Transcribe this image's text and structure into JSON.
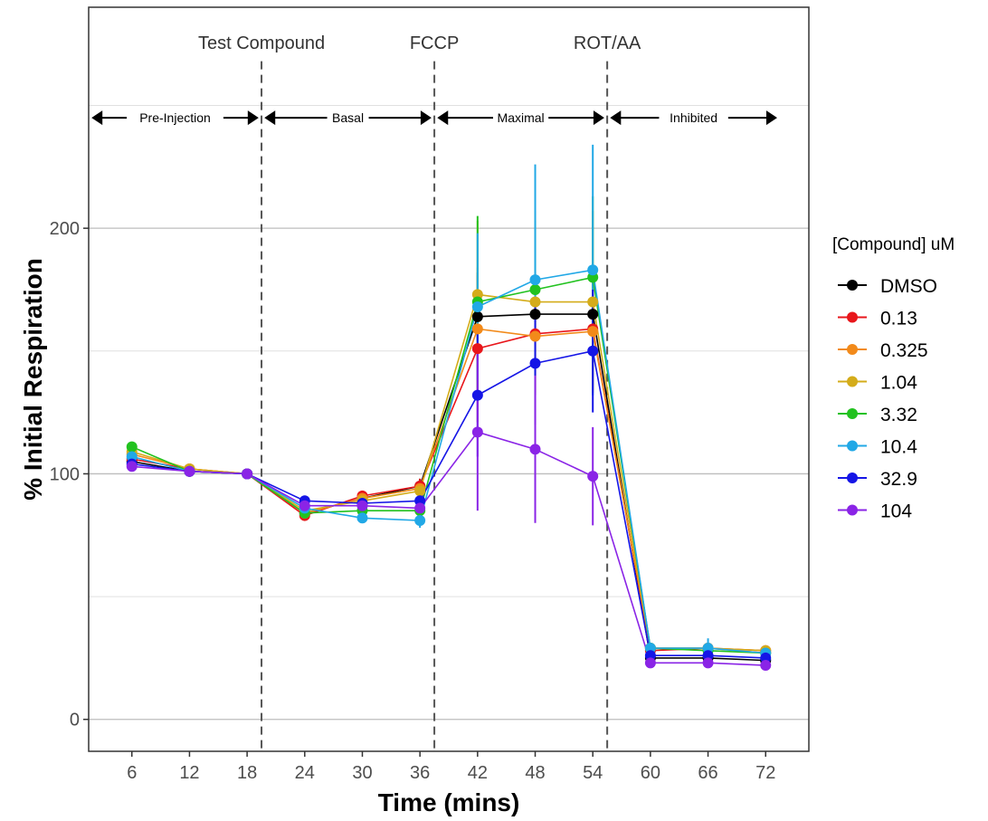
{
  "chart_data": {
    "type": "line",
    "xlabel": "Time (mins)",
    "ylabel": "% Initial Respiration",
    "x": [
      6,
      12,
      18,
      24,
      30,
      36,
      42,
      48,
      54,
      60,
      66,
      72
    ],
    "xlim": [
      1.5,
      76.5
    ],
    "ylim": [
      -13,
      290
    ],
    "y_ticks": [
      0,
      100,
      200
    ],
    "grid": true,
    "legend": {
      "title": "[Compound] uM",
      "position": "right"
    },
    "injections": [
      {
        "label": "Test Compound",
        "x": 19.5
      },
      {
        "label": "FCCP",
        "x": 37.5
      },
      {
        "label": "ROT/AA",
        "x": 55.5
      }
    ],
    "phases": [
      {
        "label": "Pre-Injection",
        "x_start": 1.8,
        "x_end": 19.2
      },
      {
        "label": "Basal",
        "x_start": 19.8,
        "x_end": 37.2
      },
      {
        "label": "Maximal",
        "x_start": 37.8,
        "x_end": 55.2
      },
      {
        "label": "Inhibited",
        "x_start": 55.8,
        "x_end": 73.2
      }
    ],
    "phase_arrow_y": 245,
    "series": [
      {
        "name": "DMSO",
        "color": "#000000",
        "values": [
          105,
          101,
          100,
          84,
          90,
          95,
          164,
          165,
          165,
          25,
          25,
          24
        ],
        "error": [
          2,
          1,
          0,
          2,
          2,
          3,
          18,
          15,
          15,
          2,
          2,
          2
        ]
      },
      {
        "name": "0.13",
        "color": "#e8161b",
        "values": [
          106,
          102,
          100,
          83,
          91,
          95,
          151,
          157,
          159,
          28,
          29,
          28
        ],
        "error": [
          2,
          1,
          0,
          2,
          2,
          3,
          30,
          25,
          25,
          2,
          2,
          2
        ]
      },
      {
        "name": "0.325",
        "color": "#f28a1a",
        "values": [
          108,
          102,
          100,
          84,
          90,
          94,
          159,
          156,
          158,
          29,
          29,
          27
        ],
        "error": [
          2,
          1,
          0,
          2,
          2,
          3,
          25,
          22,
          22,
          2,
          2,
          2
        ]
      },
      {
        "name": "1.04",
        "color": "#d4ac1a",
        "values": [
          109,
          102,
          100,
          85,
          89,
          93,
          173,
          170,
          170,
          29,
          29,
          28
        ],
        "error": [
          2,
          1,
          0,
          2,
          2,
          3,
          30,
          37,
          37,
          2,
          2,
          2
        ]
      },
      {
        "name": "3.32",
        "color": "#22c21f",
        "values": [
          111,
          101,
          100,
          84,
          85,
          85,
          170,
          175,
          180,
          29,
          28,
          27
        ],
        "error": [
          2,
          1,
          0,
          2,
          2,
          3,
          35,
          28,
          33,
          2,
          2,
          2
        ]
      },
      {
        "name": "10.4",
        "color": "#21a8e6",
        "values": [
          107,
          101,
          100,
          86,
          82,
          81,
          168,
          179,
          183,
          29,
          29,
          27
        ],
        "error": [
          2,
          1,
          0,
          2,
          2,
          3,
          30,
          47,
          51,
          2,
          4,
          2
        ]
      },
      {
        "name": "32.9",
        "color": "#1515e6",
        "values": [
          104,
          101,
          100,
          89,
          88,
          89,
          132,
          145,
          150,
          26,
          26,
          25
        ],
        "error": [
          2,
          1,
          0,
          2,
          2,
          3,
          25,
          25,
          25,
          2,
          2,
          2
        ]
      },
      {
        "name": "104",
        "color": "#8a24e6",
        "values": [
          103,
          101,
          100,
          87,
          87,
          86,
          117,
          110,
          99,
          23,
          23,
          22
        ],
        "error": [
          2,
          1,
          0,
          2,
          2,
          3,
          32,
          30,
          20,
          2,
          2,
          2
        ]
      }
    ]
  }
}
